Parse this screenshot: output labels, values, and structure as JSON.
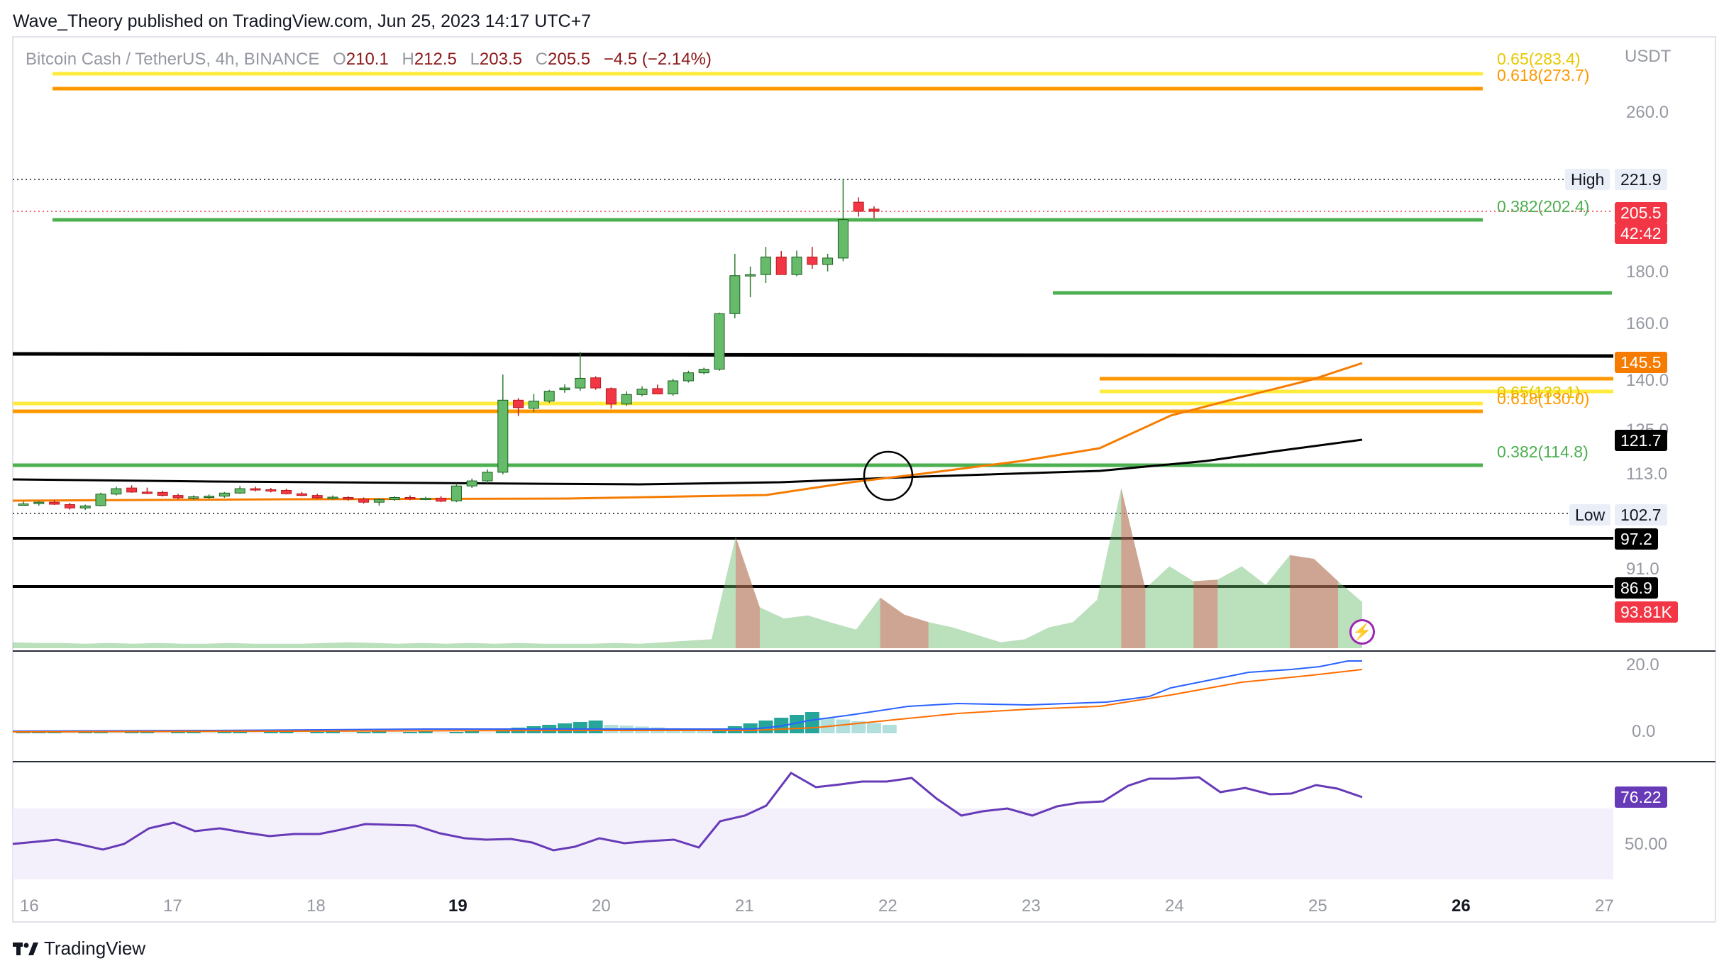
{
  "header": {
    "publisher_text": "Wave_Theory published on TradingView.com, Jun 25, 2023 14:17 UTC+7"
  },
  "legend": {
    "symbol": "Bitcoin Cash / TetherUS, 4h, BINANCE",
    "o_label": "O",
    "o_value": "210.1",
    "h_label": "H",
    "h_value": "212.5",
    "l_label": "L",
    "l_value": "203.5",
    "c_label": "C",
    "c_value": "205.5",
    "change": "−4.5 (−2.14%)"
  },
  "price_axis": {
    "currency": "USDT",
    "ticks": [
      "260.0",
      "180.0",
      "160.0",
      "140.0",
      "125.0",
      "113.0",
      "91.0"
    ]
  },
  "price_tags": {
    "high_label": "High",
    "high_value": "221.9",
    "last_price": "205.5",
    "countdown": "42:42",
    "ema_value": "145.5",
    "sma_value": "121.7",
    "low_label": "Low",
    "low_value": "102.7",
    "support1": "97.2",
    "support2": "86.9",
    "volume_value": "93.81K"
  },
  "fib_labels": {
    "upper_065": "0.65(283.4)",
    "upper_0618": "0.618(273.7)",
    "upper_0382": "0.382(202.4)",
    "lower_065": "0.65(133.1)",
    "lower_0618": "0.618(130.0)",
    "lower_0382": "0.382(114.8)"
  },
  "macd_axis": {
    "ticks": [
      "20.0",
      "0.0"
    ]
  },
  "rsi_axis": {
    "value": "76.22",
    "ticks": [
      "50.00"
    ]
  },
  "time_axis": [
    "16",
    "17",
    "18",
    "19",
    "20",
    "21",
    "22",
    "23",
    "24",
    "25",
    "26",
    "27"
  ],
  "brand": {
    "name": "TradingView"
  },
  "colors": {
    "bull": "#66bb6a",
    "bear": "#f23645",
    "fib_yellow": "#ffeb3b",
    "fib_orange": "#ff9800",
    "fib_green": "#4caf50",
    "ema": "#f57c00",
    "sma": "#000000",
    "rsi": "#673ab7",
    "macd_line": "#2962ff",
    "signal_line": "#ff6d00"
  },
  "chart_data": {
    "type": "candlestick",
    "symbol": "Bitcoin Cash / TetherUS",
    "timeframe": "4h",
    "candles": [
      {
        "o": 104.5,
        "h": 105.2,
        "l": 104,
        "c": 104.5
      },
      {
        "o": 104.6,
        "h": 105.3,
        "l": 104,
        "c": 105.0
      },
      {
        "o": 105.0,
        "h": 105.6,
        "l": 104.2,
        "c": 104.4
      },
      {
        "o": 104.3,
        "h": 104.8,
        "l": 102.8,
        "c": 103.3
      },
      {
        "o": 103.3,
        "h": 104.3,
        "l": 102.7,
        "c": 103.9
      },
      {
        "o": 104.0,
        "h": 107.8,
        "l": 103.8,
        "c": 107.4
      },
      {
        "o": 107.4,
        "h": 109.6,
        "l": 107.0,
        "c": 109.0
      },
      {
        "o": 109.2,
        "h": 110.0,
        "l": 107.8,
        "c": 108.0
      },
      {
        "o": 108.0,
        "h": 109.3,
        "l": 107.4,
        "c": 107.9
      },
      {
        "o": 107.9,
        "h": 108.4,
        "l": 106.7,
        "c": 107.0
      },
      {
        "o": 107.0,
        "h": 107.5,
        "l": 105.9,
        "c": 106.3
      },
      {
        "o": 106.4,
        "h": 107.0,
        "l": 105.8,
        "c": 106.6
      },
      {
        "o": 106.6,
        "h": 107.3,
        "l": 106.0,
        "c": 106.8
      },
      {
        "o": 106.8,
        "h": 108.0,
        "l": 106.3,
        "c": 107.7
      },
      {
        "o": 107.7,
        "h": 109.8,
        "l": 107.5,
        "c": 109.0
      },
      {
        "o": 109.0,
        "h": 109.6,
        "l": 108.2,
        "c": 108.7
      },
      {
        "o": 108.7,
        "h": 109.2,
        "l": 107.9,
        "c": 108.5
      },
      {
        "o": 108.5,
        "h": 109.0,
        "l": 107.3,
        "c": 107.5
      },
      {
        "o": 107.5,
        "h": 108.0,
        "l": 106.8,
        "c": 107.0
      },
      {
        "o": 107.0,
        "h": 107.5,
        "l": 106.0,
        "c": 106.3
      },
      {
        "o": 106.3,
        "h": 107.0,
        "l": 105.8,
        "c": 106.5
      },
      {
        "o": 106.4,
        "h": 106.8,
        "l": 105.5,
        "c": 105.9
      },
      {
        "o": 105.9,
        "h": 106.4,
        "l": 104.6,
        "c": 105.0
      },
      {
        "o": 105.0,
        "h": 106.2,
        "l": 104.0,
        "c": 105.8
      },
      {
        "o": 105.8,
        "h": 106.8,
        "l": 105.4,
        "c": 106.4
      },
      {
        "o": 106.4,
        "h": 107.0,
        "l": 105.6,
        "c": 106.0
      },
      {
        "o": 106.0,
        "h": 106.6,
        "l": 105.6,
        "c": 106.2
      },
      {
        "o": 106.2,
        "h": 106.8,
        "l": 105.0,
        "c": 105.3
      },
      {
        "o": 105.4,
        "h": 110.5,
        "l": 105.0,
        "c": 109.8
      },
      {
        "o": 109.8,
        "h": 112.0,
        "l": 109.2,
        "c": 111.3
      },
      {
        "o": 111.3,
        "h": 114.4,
        "l": 110.6,
        "c": 113.7
      },
      {
        "o": 113.7,
        "h": 142.5,
        "l": 113.2,
        "c": 133.5
      },
      {
        "o": 133.5,
        "h": 134.2,
        "l": 128.2,
        "c": 131.0
      },
      {
        "o": 130.8,
        "h": 135.6,
        "l": 129.5,
        "c": 133.2
      },
      {
        "o": 133.2,
        "h": 137.0,
        "l": 132.6,
        "c": 136.5
      },
      {
        "o": 137.0,
        "h": 138.8,
        "l": 136.0,
        "c": 137.6
      },
      {
        "o": 137.6,
        "h": 151.5,
        "l": 136.7,
        "c": 141.0
      },
      {
        "o": 141.2,
        "h": 141.8,
        "l": 137.0,
        "c": 137.6
      },
      {
        "o": 137.4,
        "h": 137.8,
        "l": 130.7,
        "c": 132.2
      },
      {
        "o": 132.2,
        "h": 136.5,
        "l": 131.6,
        "c": 135.4
      },
      {
        "o": 135.4,
        "h": 138.2,
        "l": 134.8,
        "c": 137.2
      },
      {
        "o": 137.4,
        "h": 138.7,
        "l": 135.6,
        "c": 135.6
      },
      {
        "o": 135.6,
        "h": 140.8,
        "l": 135.0,
        "c": 140.0
      },
      {
        "o": 140.0,
        "h": 144.0,
        "l": 139.4,
        "c": 143.2
      },
      {
        "o": 143.2,
        "h": 145.2,
        "l": 142.6,
        "c": 144.6
      },
      {
        "o": 144.6,
        "h": 167.0,
        "l": 144.0,
        "c": 166.6
      },
      {
        "o": 166.6,
        "h": 189.6,
        "l": 164.8,
        "c": 181.4
      },
      {
        "o": 181.4,
        "h": 184.8,
        "l": 173.0,
        "c": 181.8
      },
      {
        "o": 181.8,
        "h": 192.2,
        "l": 178.6,
        "c": 188.4
      },
      {
        "o": 188.4,
        "h": 190.6,
        "l": 181.8,
        "c": 181.8
      },
      {
        "o": 181.8,
        "h": 190.8,
        "l": 181.2,
        "c": 188.4
      },
      {
        "o": 188.4,
        "h": 192.2,
        "l": 184.0,
        "c": 185.6
      },
      {
        "o": 185.6,
        "h": 189.6,
        "l": 183.0,
        "c": 188.0
      },
      {
        "o": 188.0,
        "h": 221.9,
        "l": 186.8,
        "c": 202.4
      },
      {
        "o": 210.1,
        "h": 212.5,
        "l": 203.5,
        "c": 205.5
      },
      {
        "o": 206.6,
        "h": 208.0,
        "l": 203.0,
        "c": 205.5
      }
    ],
    "overlays": {
      "fib_upper_levels": [
        283.4,
        273.7,
        202.4
      ],
      "fib_lower_levels": [
        133.1,
        130.0,
        114.8
      ],
      "horizontal_support": [
        171.5,
        148.0,
        97.2,
        86.9
      ],
      "high": 221.9,
      "low": 102.7,
      "last_close": 205.5,
      "ema_value": 145.5,
      "sma_value": 121.7
    },
    "volume_last": "93.81K",
    "rsi_last": 76.22,
    "x_tick_labels": [
      "16",
      "17",
      "18",
      "19",
      "20",
      "21",
      "22",
      "23",
      "24",
      "25",
      "26",
      "27"
    ]
  }
}
